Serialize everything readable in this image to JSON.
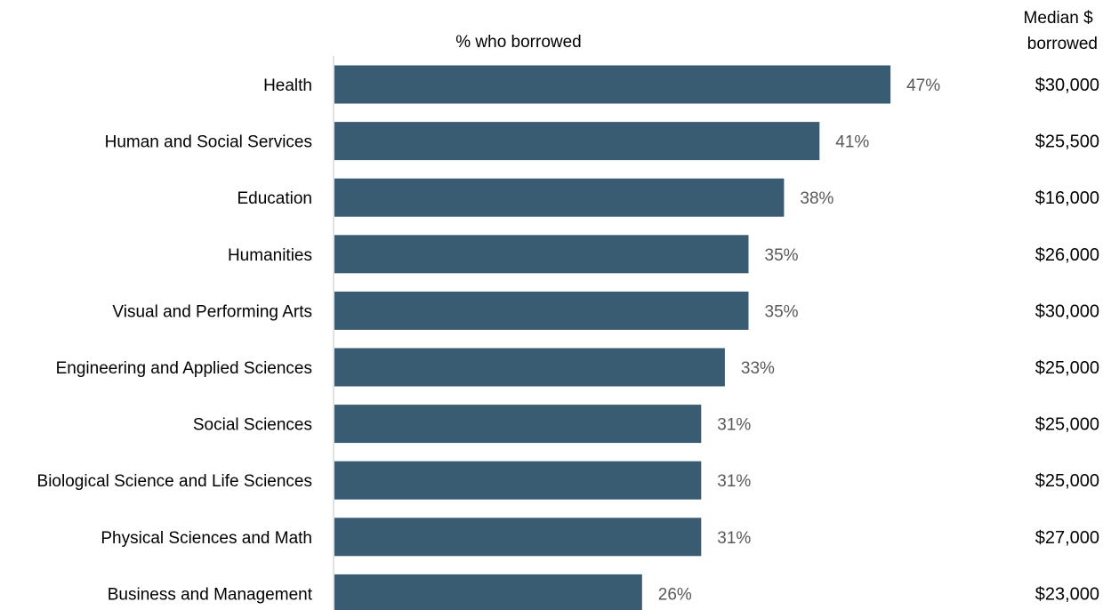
{
  "chart_data": {
    "type": "bar",
    "orientation": "horizontal",
    "title": "% who borrowed",
    "side_column_header": [
      "Median $",
      "borrowed"
    ],
    "categories": [
      "Health",
      "Human and Social Services",
      "Education",
      "Humanities",
      "Visual and Performing Arts",
      "Engineering and Applied Sciences",
      "Social Sciences",
      "Biological Science and Life Sciences",
      "Physical Sciences and Math",
      "Business and Management"
    ],
    "values": [
      47,
      41,
      38,
      35,
      35,
      33,
      31,
      31,
      31,
      26
    ],
    "value_labels": [
      "47%",
      "41%",
      "38%",
      "35%",
      "35%",
      "33%",
      "31%",
      "31%",
      "31%",
      "26%"
    ],
    "median_borrowed": [
      "$30,000",
      "$25,500",
      "$16,000",
      "$26,000",
      "$30,000",
      "$25,000",
      "$25,000",
      "$25,000",
      "$27,000",
      "$23,000"
    ],
    "xlim": [
      0,
      50
    ],
    "grid": false,
    "legend": "none",
    "bar_color": "#3a5c73",
    "label_color": "#595959",
    "axis_color": "#d9d9d9"
  }
}
